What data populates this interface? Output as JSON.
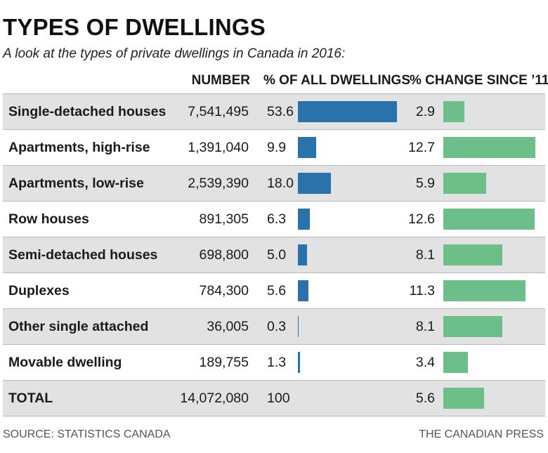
{
  "header": {
    "title": "TYPES OF DWELLINGS",
    "subtitle": "A look at the types of private dwellings in Canada in 2016:"
  },
  "columns": {
    "number": "NUMBER",
    "share": "% OF ALL DWELLINGS",
    "change": "% CHANGE SINCE ’11"
  },
  "chart_data": {
    "type": "table",
    "title": "TYPES OF DWELLINGS",
    "subtitle": "A look at the types of private dwellings in Canada in 2016:",
    "columns": [
      "NUMBER",
      "% OF ALL DWELLINGS",
      "% CHANGE SINCE ’11"
    ],
    "rows": [
      {
        "type": "Single-detached houses",
        "number": "7,541,495",
        "share": 53.6,
        "share_label": "53.6",
        "change": 2.9,
        "change_label": "2.9"
      },
      {
        "type": "Apartments, high-rise",
        "number": "1,391,040",
        "share": 9.9,
        "share_label": "9.9",
        "change": 12.7,
        "change_label": "12.7"
      },
      {
        "type": "Apartments, low-rise",
        "number": "2,539,390",
        "share": 18.0,
        "share_label": "18.0",
        "change": 5.9,
        "change_label": "5.9"
      },
      {
        "type": "Row houses",
        "number": "891,305",
        "share": 6.3,
        "share_label": "6.3",
        "change": 12.6,
        "change_label": "12.6"
      },
      {
        "type": "Semi-detached houses",
        "number": "698,800",
        "share": 5.0,
        "share_label": "5.0",
        "change": 8.1,
        "change_label": "8.1"
      },
      {
        "type": "Duplexes",
        "number": "784,300",
        "share": 5.6,
        "share_label": "5.6",
        "change": 11.3,
        "change_label": "11.3"
      },
      {
        "type": "Other single attached",
        "number": "36,005",
        "share": 0.3,
        "share_label": "0.3",
        "change": 8.1,
        "change_label": "8.1"
      },
      {
        "type": "Movable dwelling",
        "number": "189,755",
        "share": 1.3,
        "share_label": "1.3",
        "change": 3.4,
        "change_label": "3.4"
      },
      {
        "type": "TOTAL",
        "number": "14,072,080",
        "share": 100,
        "share_label": "100",
        "change": 5.6,
        "change_label": "5.6",
        "is_total": true
      }
    ],
    "share_bar_color": "#2a72ac",
    "change_bar_color": "#6cbf88",
    "row_shading_color": "#e2e2e2"
  },
  "footer": {
    "source": "SOURCE: STATISTICS CANADA",
    "credit": "THE CANADIAN PRESS"
  }
}
